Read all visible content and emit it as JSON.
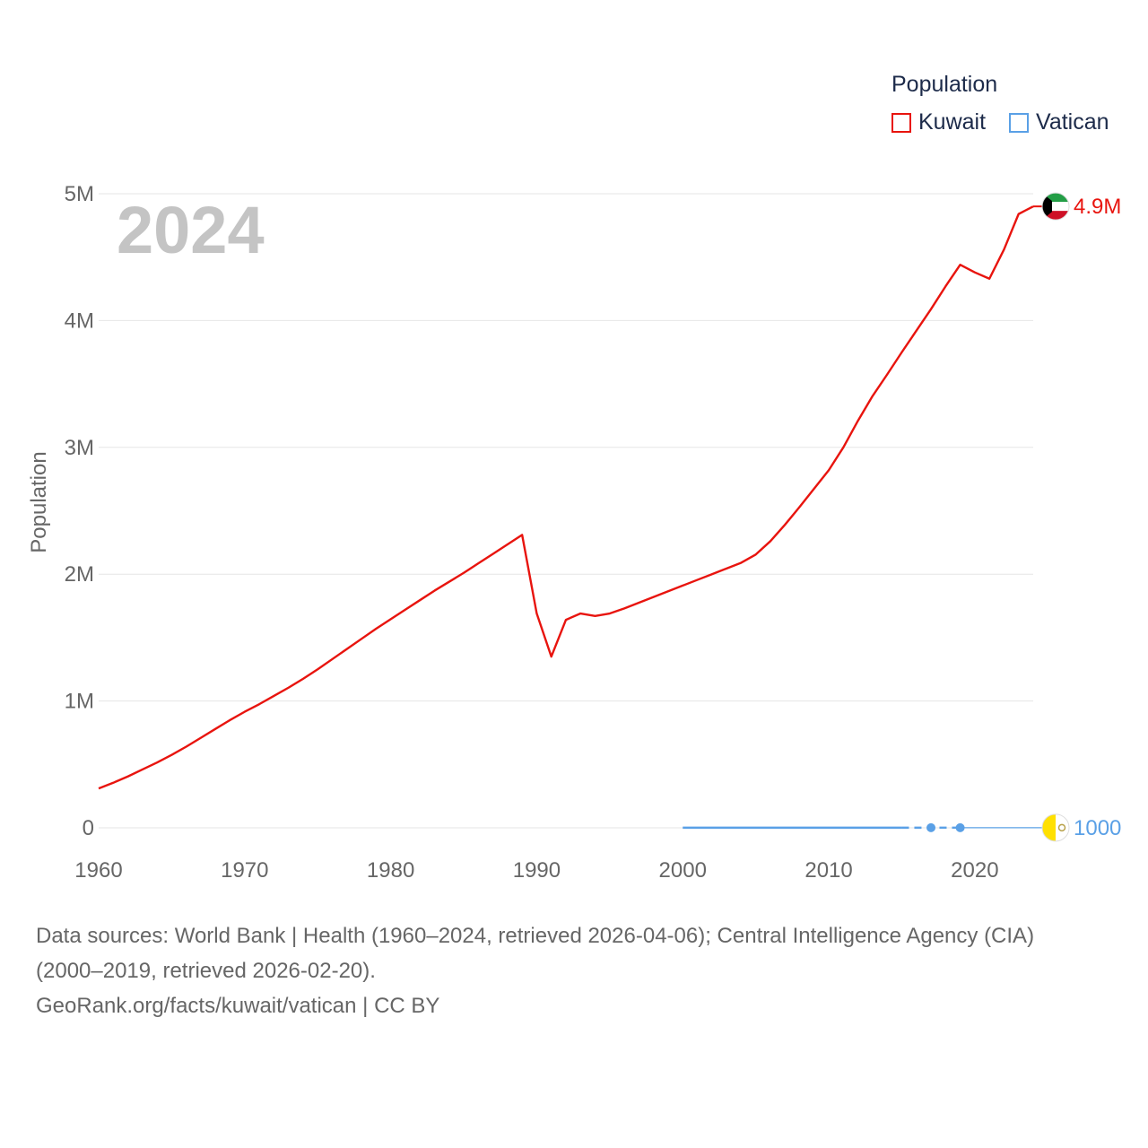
{
  "chart_data": {
    "type": "line",
    "year_label": "2024",
    "ylabel": "Population",
    "xlim": [
      1960,
      2024
    ],
    "ylim": [
      0,
      5000000
    ],
    "x_ticks": [
      1960,
      1970,
      1980,
      1990,
      2000,
      2010,
      2020
    ],
    "x_tick_labels": [
      "1960",
      "1970",
      "1980",
      "1990",
      "2000",
      "2010",
      "2020"
    ],
    "y_ticks": [
      0,
      1000000,
      2000000,
      3000000,
      4000000,
      5000000
    ],
    "y_tick_labels": [
      "0",
      "1M",
      "2M",
      "3M",
      "4M",
      "5M"
    ],
    "legend": {
      "title": "Population",
      "position": "top-right",
      "items": [
        {
          "name": "Kuwait",
          "color": "#e8140e"
        },
        {
          "name": "Vatican",
          "color": "#5aa0e6"
        }
      ]
    },
    "series": [
      {
        "name": "Kuwait",
        "color": "#e8140e",
        "end_label": "4.9M",
        "flag": "kuwait-flag",
        "x": [
          1960,
          1961,
          1962,
          1963,
          1964,
          1965,
          1966,
          1967,
          1968,
          1969,
          1970,
          1971,
          1972,
          1973,
          1974,
          1975,
          1976,
          1977,
          1978,
          1979,
          1980,
          1981,
          1982,
          1983,
          1984,
          1985,
          1986,
          1987,
          1988,
          1989,
          1990,
          1991,
          1992,
          1993,
          1994,
          1995,
          1996,
          1997,
          1998,
          1999,
          2000,
          2001,
          2002,
          2003,
          2004,
          2005,
          2006,
          2007,
          2008,
          2009,
          2010,
          2011,
          2012,
          2013,
          2014,
          2015,
          2016,
          2017,
          2018,
          2019,
          2020,
          2021,
          2022,
          2023,
          2024
        ],
        "values": [
          310000,
          355000,
          405000,
          460000,
          515000,
          575000,
          640000,
          710000,
          780000,
          850000,
          915000,
          975000,
          1040000,
          1105000,
          1175000,
          1250000,
          1330000,
          1410000,
          1490000,
          1570000,
          1645000,
          1720000,
          1795000,
          1870000,
          1940000,
          2010000,
          2085000,
          2160000,
          2235000,
          2310000,
          1690000,
          1350000,
          1640000,
          1690000,
          1670000,
          1690000,
          1730000,
          1775000,
          1820000,
          1865000,
          1910000,
          1955000,
          2000000,
          2045000,
          2090000,
          2155000,
          2260000,
          2390000,
          2530000,
          2675000,
          2820000,
          3000000,
          3210000,
          3405000,
          3575000,
          3750000,
          3920000,
          4090000,
          4270000,
          4440000,
          4380000,
          4330000,
          4560000,
          4840000,
          4900000
        ]
      },
      {
        "name": "Vatican",
        "color": "#5aa0e6",
        "end_label": "1000",
        "flag": "vatican-flag",
        "x": [
          2000,
          2001,
          2002,
          2003,
          2004,
          2005,
          2006,
          2007,
          2008,
          2009,
          2010,
          2011,
          2012,
          2013,
          2014,
          2015,
          2017,
          2019
        ],
        "values": [
          890,
          890,
          900,
          900,
          920,
          920,
          930,
          930,
          830,
          830,
          830,
          830,
          840,
          840,
          840,
          840,
          1000,
          1000
        ],
        "markers": [
          2017,
          2019
        ]
      }
    ]
  },
  "footer": {
    "sources_line": "Data sources: World Bank | Health (1960–2024, retrieved 2026-04-06); Central Intelligence Agency (CIA)",
    "sources_line2": "(2000–2019, retrieved 2026-02-20).",
    "credit": "GeoRank.org/facts/kuwait/vatican | CC BY"
  }
}
